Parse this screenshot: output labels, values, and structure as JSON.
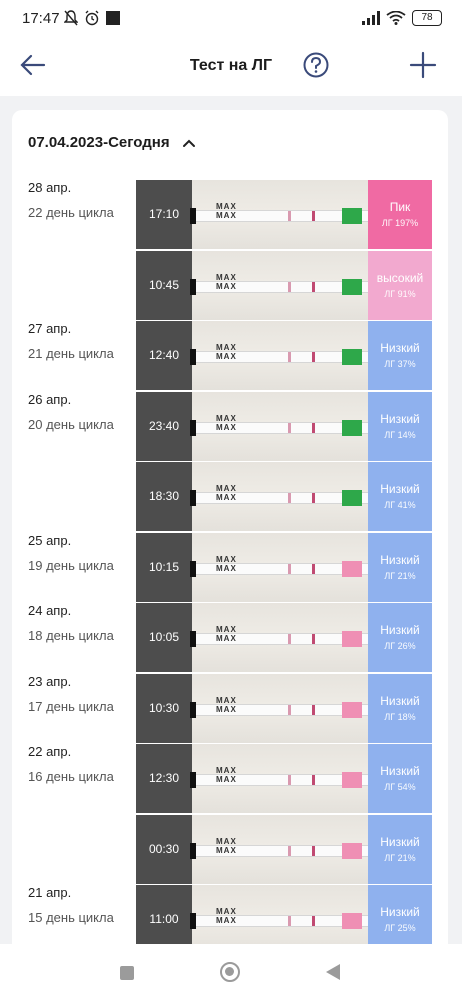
{
  "status_bar": {
    "time": "17:47",
    "battery": "78"
  },
  "app_bar": {
    "title": "Тест на ЛГ"
  },
  "card": {
    "range_label": "07.04.2023-Сегодня"
  },
  "colors": {
    "peak": "#f06aa3",
    "high": "#f2a9cf",
    "low": "#8fb1ee",
    "time_col": "#4d4d4d"
  },
  "rows": [
    {
      "date": "28 апр.",
      "cycle_day": "22 день цикла",
      "time": "17:10",
      "level": "Пик",
      "lh": "ЛГ 197%",
      "level_type": "peak"
    },
    {
      "date": "",
      "cycle_day": "",
      "time": "10:45",
      "level": "высокий",
      "lh": "ЛГ 91%",
      "level_type": "high"
    },
    {
      "date": "27 апр.",
      "cycle_day": "21 день цикла",
      "time": "12:40",
      "level": "Низкий",
      "lh": "ЛГ 37%",
      "level_type": "low"
    },
    {
      "date": "26 апр.",
      "cycle_day": "20 день цикла",
      "time": "23:40",
      "level": "Низкий",
      "lh": "ЛГ 14%",
      "level_type": "low"
    },
    {
      "date": "",
      "cycle_day": "",
      "time": "18:30",
      "level": "Низкий",
      "lh": "ЛГ 41%",
      "level_type": "low"
    },
    {
      "date": "25 апр.",
      "cycle_day": "19 день цикла",
      "time": "10:15",
      "level": "Низкий",
      "lh": "ЛГ 21%",
      "level_type": "low"
    },
    {
      "date": "24 апр.",
      "cycle_day": "18 день цикла",
      "time": "10:05",
      "level": "Низкий",
      "lh": "ЛГ 26%",
      "level_type": "low"
    },
    {
      "date": "23 апр.",
      "cycle_day": "17 день цикла",
      "time": "10:30",
      "level": "Низкий",
      "lh": "ЛГ 18%",
      "level_type": "low"
    },
    {
      "date": "22 апр.",
      "cycle_day": "16 день цикла",
      "time": "12:30",
      "level": "Низкий",
      "lh": "ЛГ 54%",
      "level_type": "low"
    },
    {
      "date": "",
      "cycle_day": "",
      "time": "00:30",
      "level": "Низкий",
      "lh": "ЛГ 21%",
      "level_type": "low"
    },
    {
      "date": "21 апр.",
      "cycle_day": "15 день цикла",
      "time": "11:00",
      "level": "Низкий",
      "lh": "ЛГ 25%",
      "level_type": "low"
    }
  ],
  "strip": {
    "max_label": "MAX"
  }
}
